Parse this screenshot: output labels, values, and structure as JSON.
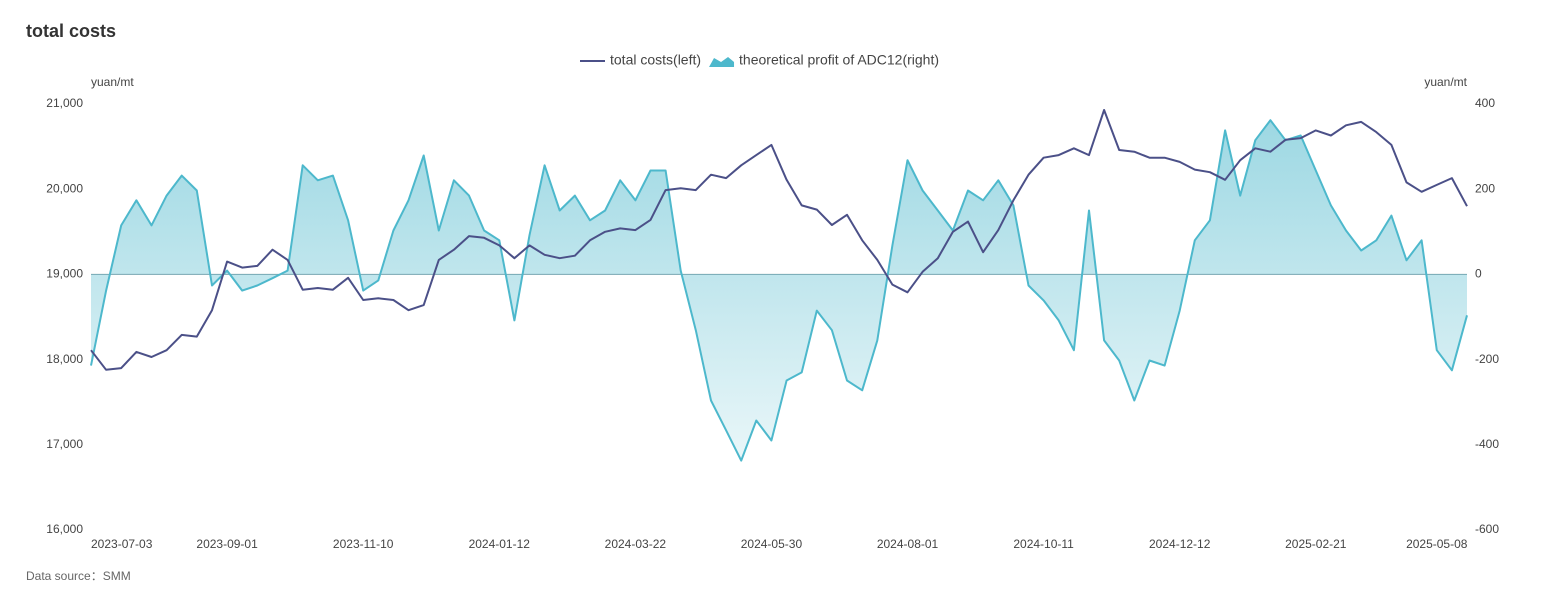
{
  "chart_data": {
    "type": "line",
    "title": "total costs",
    "source": "Data source：SMM",
    "y_label": "yuan/mt",
    "y2_label": "yuan/mt",
    "grid": false,
    "legend_position": "top",
    "categories": [
      "2023-07-03",
      null,
      null,
      null,
      null,
      null,
      null,
      null,
      null,
      "2023-09-01",
      null,
      null,
      null,
      null,
      null,
      null,
      null,
      null,
      "2023-11-10",
      null,
      null,
      null,
      null,
      null,
      null,
      null,
      null,
      "2024-01-12",
      null,
      null,
      null,
      null,
      null,
      null,
      null,
      null,
      "2024-03-22",
      null,
      null,
      null,
      null,
      null,
      null,
      null,
      null,
      "2024-05-30",
      null,
      null,
      null,
      null,
      null,
      null,
      null,
      null,
      "2024-08-01",
      null,
      null,
      null,
      null,
      null,
      null,
      null,
      null,
      "2024-10-11",
      null,
      null,
      null,
      null,
      null,
      null,
      null,
      null,
      "2024-12-12",
      null,
      null,
      null,
      null,
      null,
      null,
      null,
      null,
      "2025-02-21",
      null,
      null,
      null,
      null,
      null,
      null,
      null,
      "2025-05-08",
      null,
      null
    ],
    "series": [
      {
        "name": "total costs(left)",
        "type": "line",
        "color": "#4b5088",
        "axis": "y",
        "values": [
          18110,
          17880,
          17900,
          18090,
          18030,
          18110,
          18290,
          18270,
          18580,
          19150,
          19080,
          19100,
          19290,
          19170,
          18820,
          18840,
          18820,
          18960,
          18700,
          18720,
          18700,
          18580,
          18640,
          19170,
          19290,
          19450,
          19430,
          19340,
          19190,
          19340,
          19230,
          19190,
          19220,
          19400,
          19500,
          19540,
          19520,
          19640,
          19990,
          20010,
          19990,
          20170,
          20130,
          20280,
          20400,
          20520,
          20110,
          19810,
          19760,
          19580,
          19700,
          19400,
          19170,
          18880,
          18790,
          19030,
          19190,
          19500,
          19620,
          19260,
          19520,
          19870,
          20170,
          20370,
          20400,
          20480,
          20400,
          20930,
          20460,
          20440,
          20370,
          20370,
          20320,
          20230,
          20200,
          20110,
          20340,
          20480,
          20440,
          20580,
          20600,
          20690,
          20630,
          20750,
          20790,
          20670,
          20520,
          20080,
          19970,
          20050,
          20130,
          19800
        ]
      },
      {
        "name": "theoretical profit of ADC12(right)",
        "type": "area",
        "color": "#4db8cc",
        "axis": "y2",
        "values": [
          -214,
          -38,
          115,
          174,
          115,
          185,
          232,
          197,
          -26,
          9,
          -38,
          -26,
          -9,
          9,
          256,
          221,
          232,
          127,
          -38,
          -14,
          103,
          174,
          279,
          103,
          221,
          185,
          103,
          80,
          -108,
          92,
          256,
          150,
          185,
          127,
          150,
          221,
          174,
          244,
          244,
          9,
          -131,
          -296,
          -366,
          -437,
          -343,
          -390,
          -249,
          -230,
          -85,
          -131,
          -249,
          -272,
          -155,
          68,
          268,
          197,
          150,
          103,
          197,
          174,
          221,
          162,
          -26,
          -61,
          -108,
          -178,
          150,
          -155,
          -202,
          -296,
          -202,
          -214,
          -85,
          80,
          127,
          338,
          185,
          315,
          362,
          315,
          326,
          244,
          162,
          103,
          56,
          80,
          138,
          33,
          80,
          -178,
          -225,
          -96
        ]
      }
    ],
    "ylim": [
      16000,
      21000
    ],
    "yticks": [
      {
        "value": 16000,
        "label": "16,000"
      },
      {
        "value": 17000,
        "label": "17,000"
      },
      {
        "value": 18000,
        "label": "18,000"
      },
      {
        "value": 19000,
        "label": "19,000"
      },
      {
        "value": 20000,
        "label": "20,000"
      },
      {
        "value": 21000,
        "label": "21,000"
      }
    ],
    "y2lim": [
      -600,
      400
    ],
    "y2ticks": [
      -600,
      -400,
      -200,
      0,
      200,
      400
    ]
  }
}
